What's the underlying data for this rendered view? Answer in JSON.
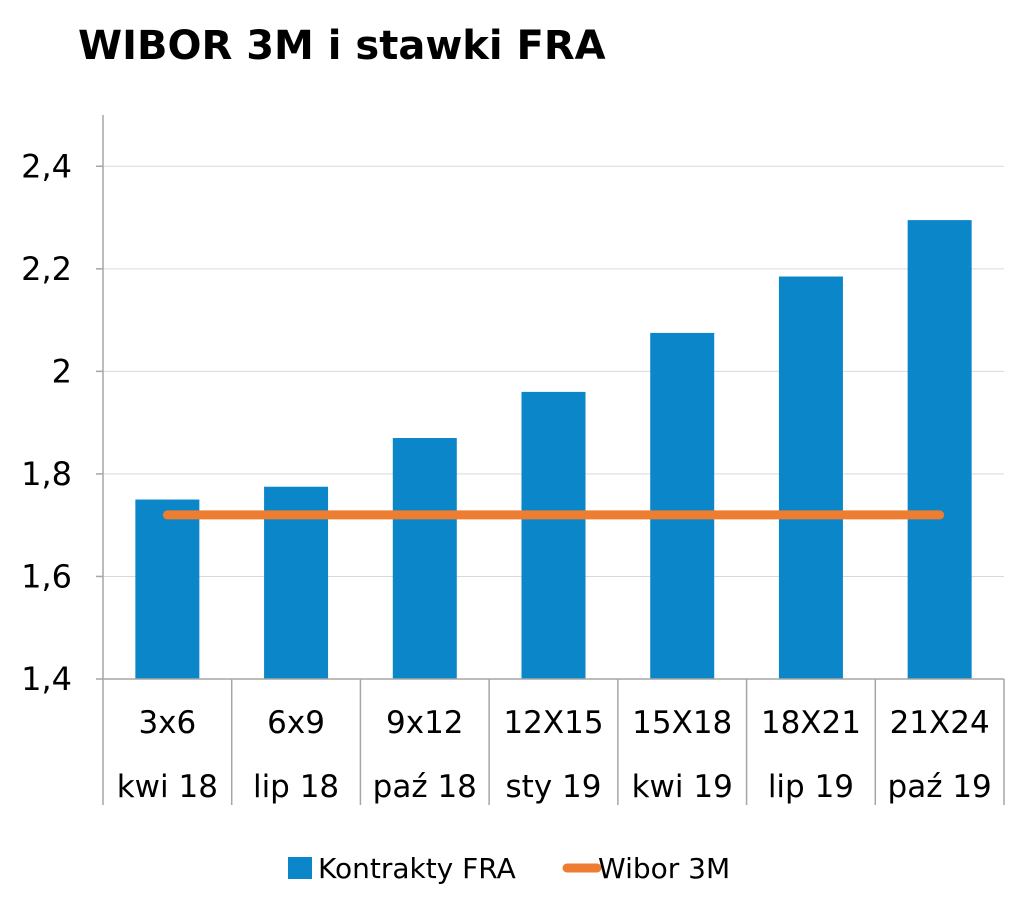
{
  "chart_data": {
    "type": "bar",
    "title": "WIBOR 3M i stawki FRA",
    "categories": [
      [
        "3x6",
        "kwi 18"
      ],
      [
        "6x9",
        "lip 18"
      ],
      [
        "9x12",
        "paź 18"
      ],
      [
        "12X15",
        "sty 19"
      ],
      [
        "15X18",
        "kwi 19"
      ],
      [
        "18X21",
        "lip 19"
      ],
      [
        "21X24",
        "paź 19"
      ]
    ],
    "series": [
      {
        "name": "Kontrakty FRA",
        "type": "bar",
        "color": "#0a86c9",
        "values": [
          1.75,
          1.775,
          1.87,
          1.96,
          2.075,
          2.185,
          2.295
        ]
      },
      {
        "name": "Wibor 3M",
        "type": "line",
        "color": "#ed7d31",
        "values": [
          1.72,
          1.72,
          1.72,
          1.72,
          1.72,
          1.72,
          1.72
        ]
      }
    ],
    "ylim": [
      1.4,
      2.5
    ],
    "yticks": [
      "1,4",
      "1,6",
      "1,8",
      "2",
      "2,2",
      "2,4"
    ],
    "ytick_values": [
      1.4,
      1.6,
      1.8,
      2.0,
      2.2,
      2.4
    ],
    "grid": true,
    "legend": "bottom"
  }
}
